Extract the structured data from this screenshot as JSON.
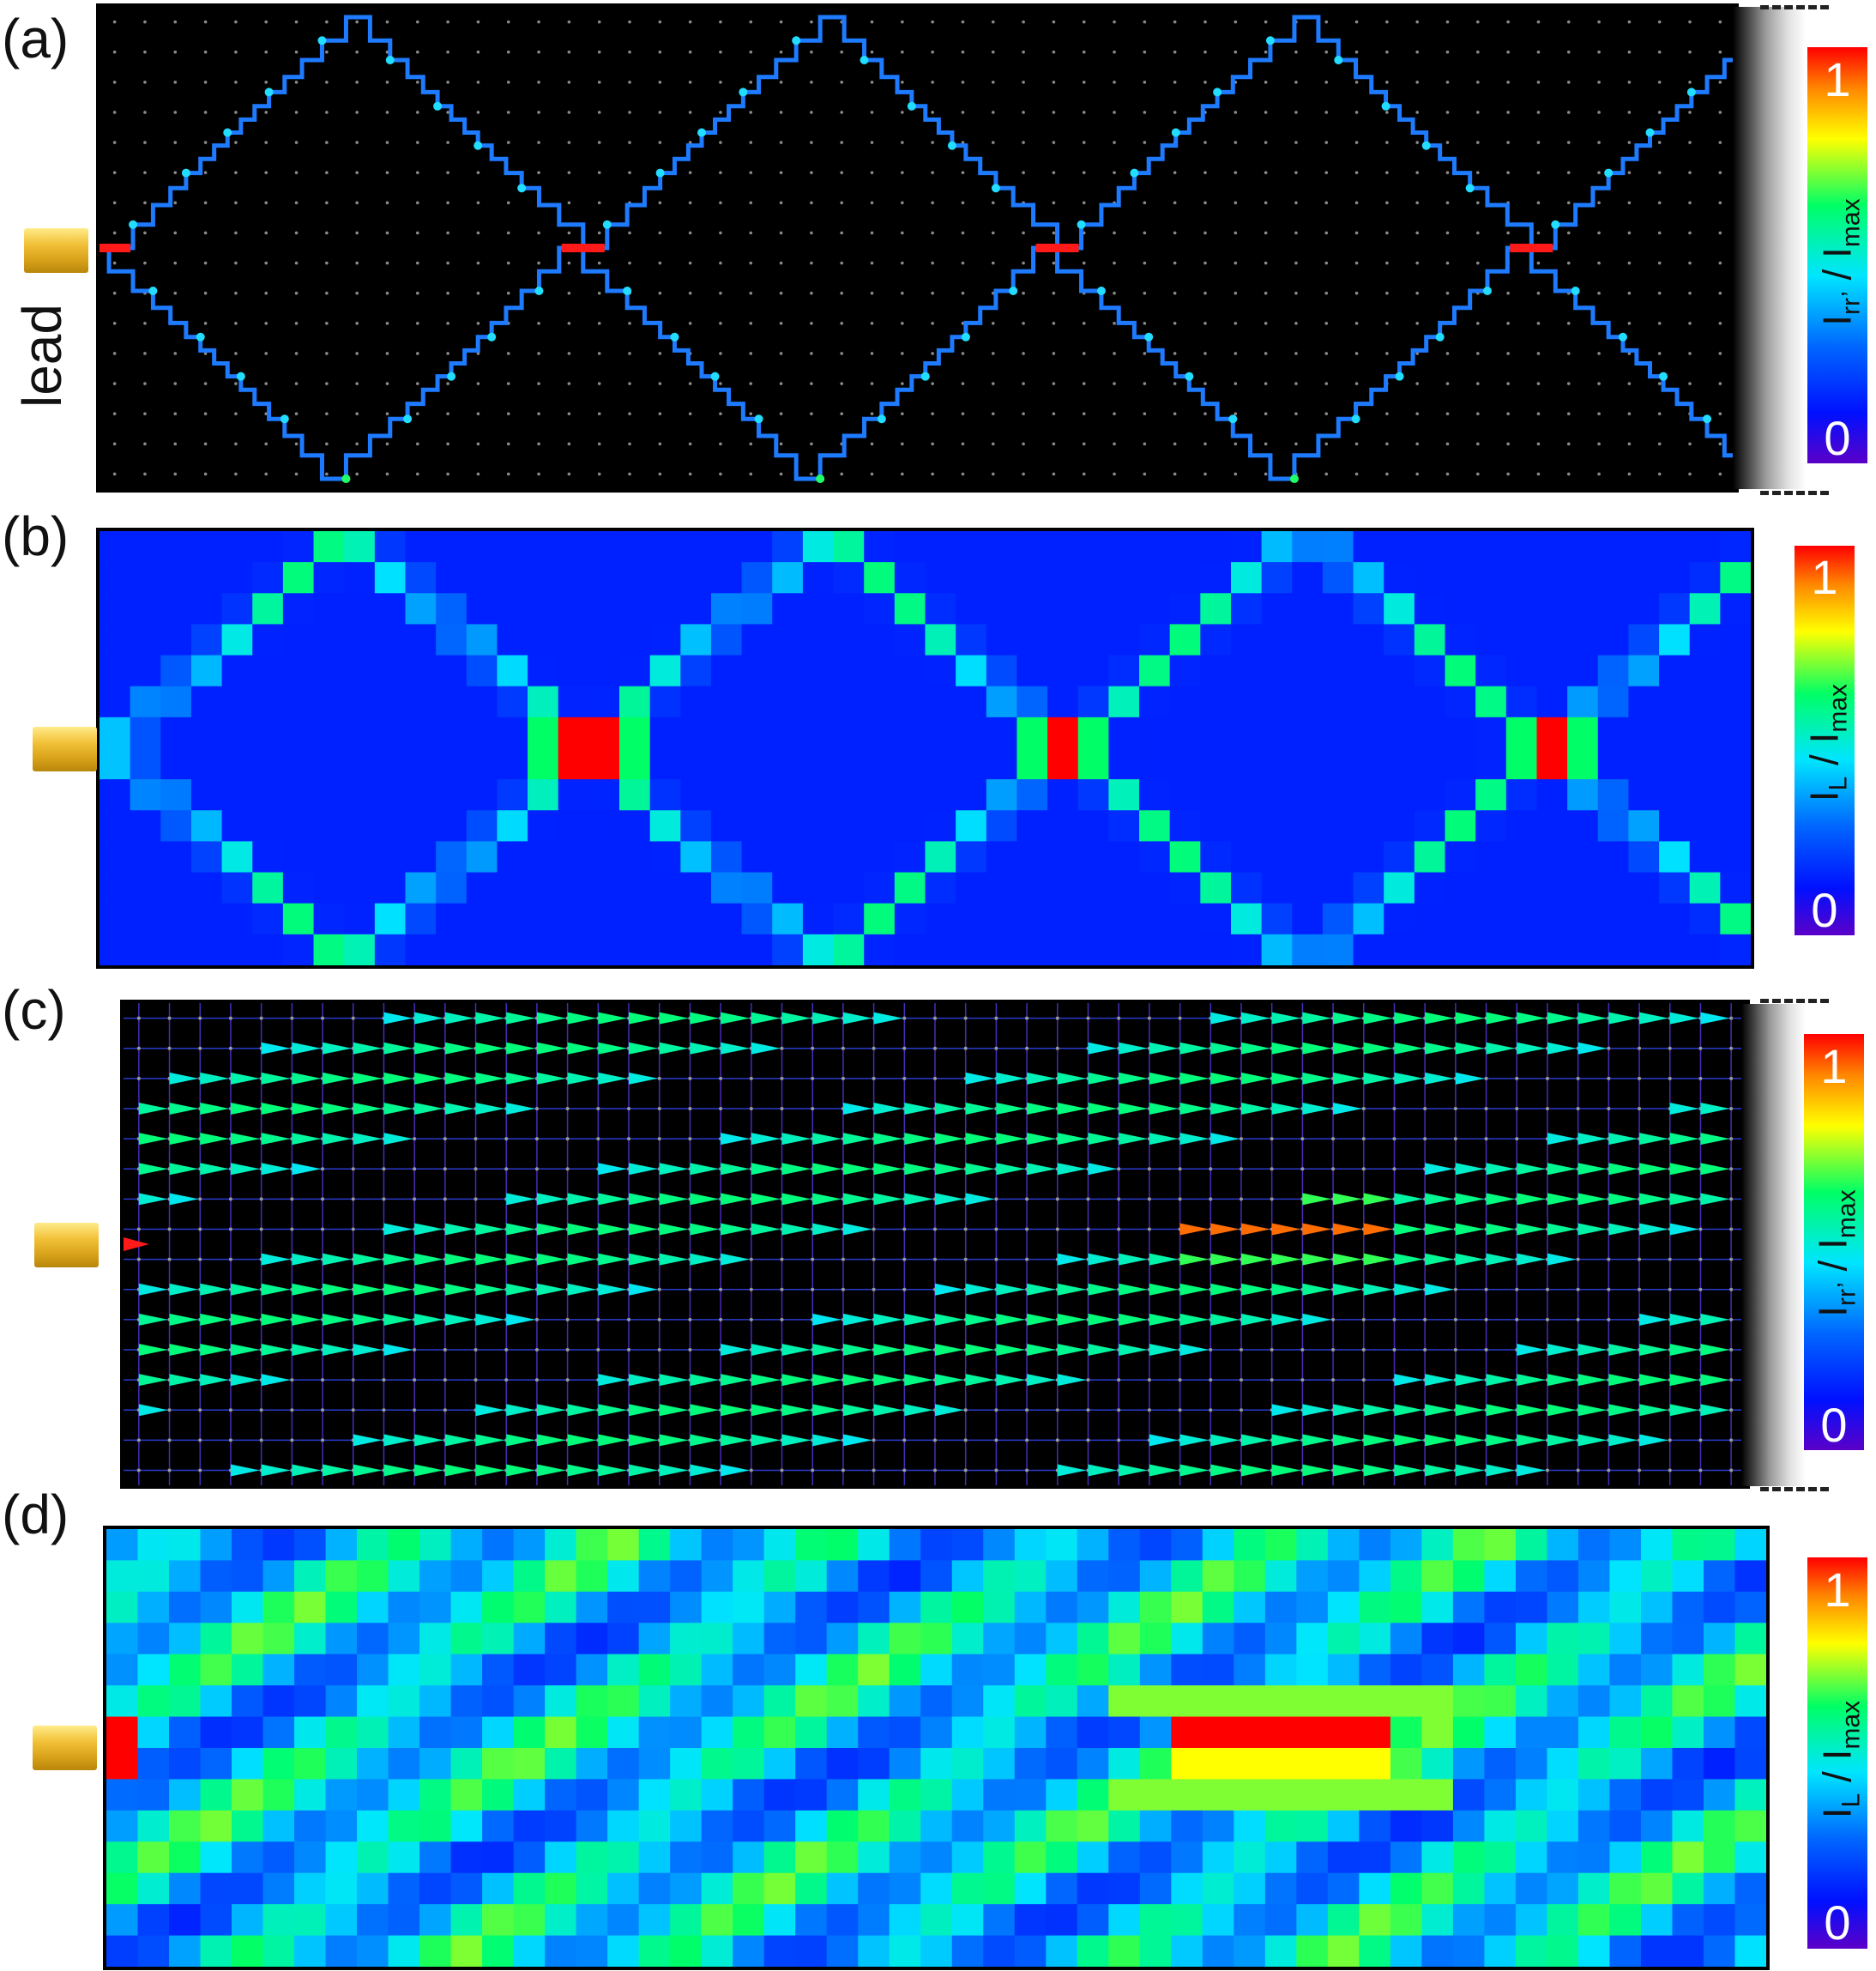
{
  "labels": {
    "panel_a": "(a)",
    "panel_b": "(b)",
    "panel_c": "(c)",
    "panel_d": "(d)",
    "lead": "lead"
  },
  "colorbars": [
    {
      "id": "a",
      "top_label": "1",
      "bottom_label": "0",
      "quantity": "I",
      "subscript": "rr’",
      "denominator": "I",
      "denominator_subscript": "max"
    },
    {
      "id": "b",
      "top_label": "1",
      "bottom_label": "0",
      "quantity": "I",
      "subscript": "L",
      "denominator": "I",
      "denominator_subscript": "max"
    },
    {
      "id": "c",
      "top_label": "1",
      "bottom_label": "0",
      "quantity": "I",
      "subscript": "rr’",
      "denominator": "I",
      "denominator_subscript": "max"
    },
    {
      "id": "d",
      "top_label": "1",
      "bottom_label": "0",
      "quantity": "I",
      "subscript": "L",
      "denominator": "I",
      "denominator_subscript": "max"
    }
  ],
  "colors": {
    "colormap": [
      "#5b00c8",
      "#0010ff",
      "#0066ff",
      "#00e5ff",
      "#00ff66",
      "#ffff00",
      "#ff8800",
      "#ff0000"
    ],
    "lattice_background": "#000000",
    "lead_gold": "#d9a31a"
  }
}
